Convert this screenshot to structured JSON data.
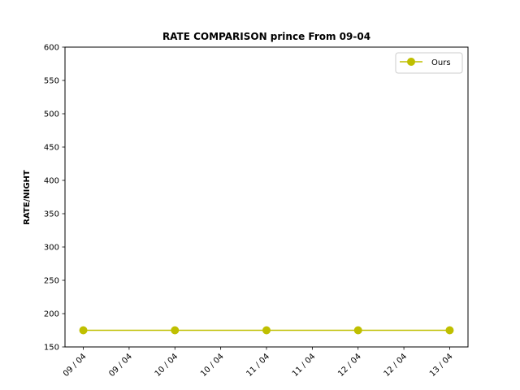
{
  "chart_data": {
    "type": "line",
    "title": "RATE COMPARISON prince From 09-04",
    "xlabel": "",
    "ylabel": "RATE/NIGHT",
    "tick_labels": [
      "09 / 04",
      "09 / 04",
      "10 / 04",
      "10 / 04",
      "11 / 04",
      "11 / 04",
      "12 / 04",
      "12 / 04",
      "13 / 04"
    ],
    "yticks": [
      150,
      200,
      250,
      300,
      350,
      400,
      450,
      500,
      550,
      600
    ],
    "ylim": [
      150,
      600
    ],
    "xlim": [
      -0.2,
      4.2
    ],
    "grid": false,
    "legend": {
      "position": "top-right",
      "entries": [
        "Ours"
      ]
    },
    "series": [
      {
        "name": "Ours",
        "color": "#bfbf00",
        "marker": "circle",
        "x": [
          0,
          1,
          2,
          3,
          4
        ],
        "values": [
          175,
          175,
          175,
          175,
          175
        ]
      }
    ]
  }
}
